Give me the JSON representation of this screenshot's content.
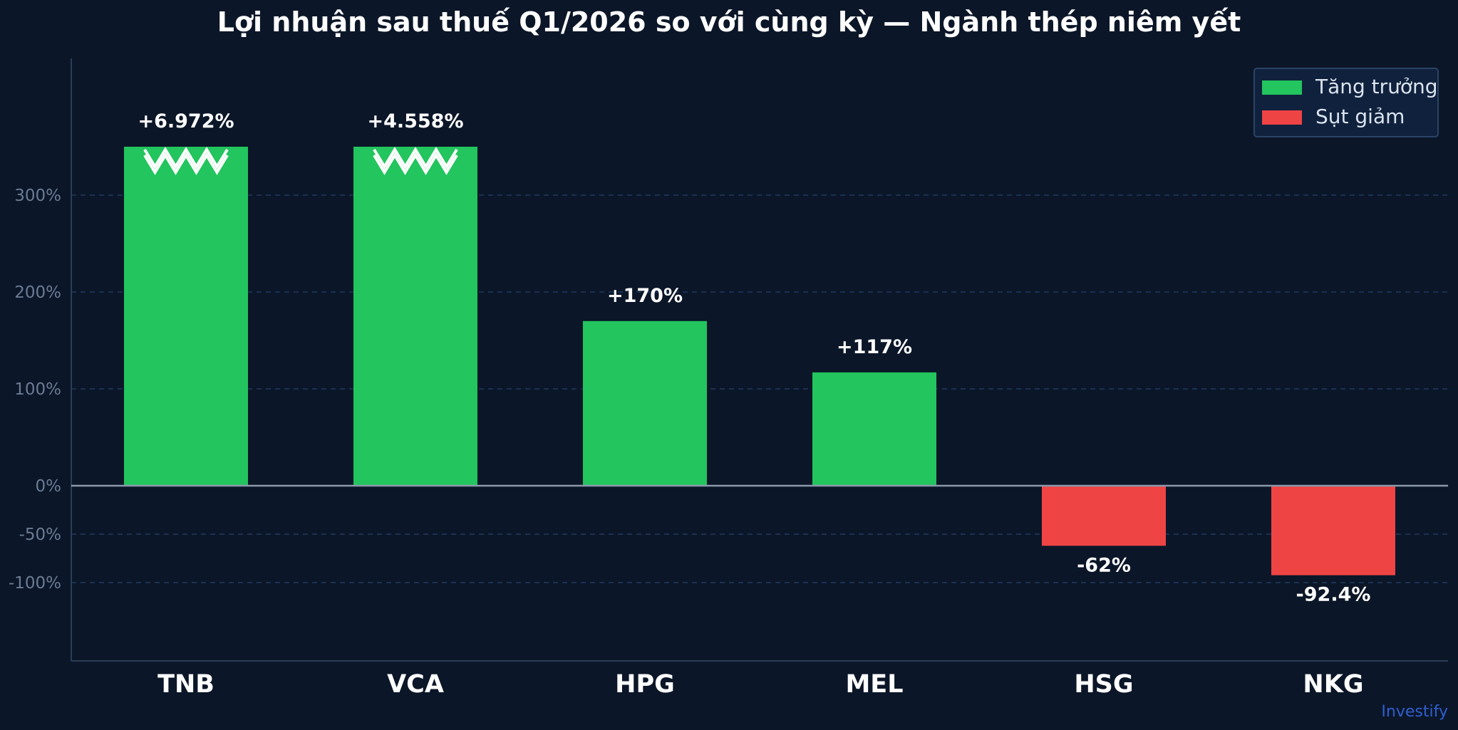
{
  "chart_data": {
    "type": "bar",
    "title": "Lợi nhuận sau thuế Q1/2026 so với cùng kỳ — Ngành thép niêm yết",
    "categories": [
      "TNB",
      "VCA",
      "HPG",
      "MEL",
      "HSG",
      "NKG"
    ],
    "values": [
      6972,
      4558,
      170,
      117,
      -62,
      -92.4
    ],
    "data_labels": [
      "+6.972%",
      "+4.558%",
      "+170%",
      "+117%",
      "-62%",
      "-92.4%"
    ],
    "axis_break": {
      "display_cap": 350,
      "marked": [
        "TNB",
        "VCA"
      ]
    },
    "yticks": [
      300,
      200,
      100,
      0,
      -50,
      -100
    ],
    "ytick_labels": [
      "300%",
      "200%",
      "100%",
      "0%",
      "-50%",
      "-100%"
    ],
    "ylim": [
      -180,
      440
    ],
    "grid": true,
    "xlabel": "",
    "ylabel": "",
    "legend": {
      "placement": "top-right",
      "entries": [
        {
          "label": "Tăng trưởng",
          "color": "#22c55e"
        },
        {
          "label": "Sụt giảm",
          "color": "#ef4444"
        }
      ]
    },
    "colors": {
      "positive": "#22c55e",
      "negative": "#ef4444",
      "background": "#0b1628",
      "grid": "#1f3a5f",
      "axis": "#2c3e57",
      "zero_line": "#8b99ab"
    },
    "watermark": "Investify"
  }
}
